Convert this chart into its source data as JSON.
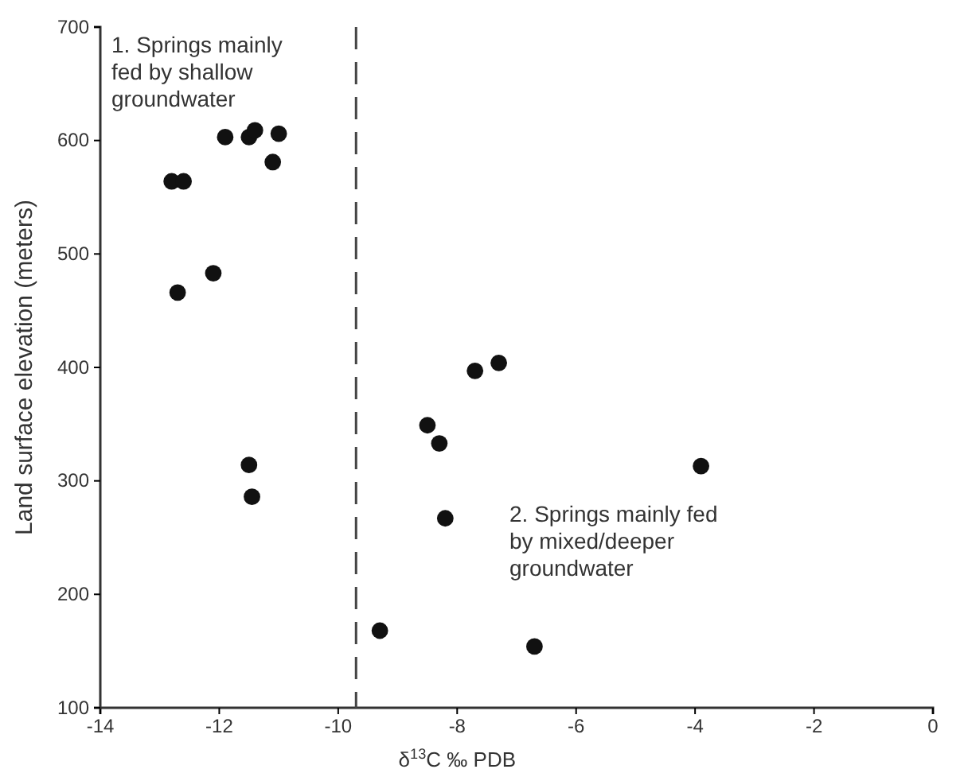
{
  "chart_data": {
    "type": "scatter",
    "xlabel": "δ$^{13}$C ‰ PDB",
    "ylabel": "Land surface elevation (meters)",
    "x": [
      -11.9,
      -11.5,
      -11.4,
      -11.0,
      -11.1,
      -12.8,
      -12.6,
      -12.7,
      -12.1,
      -11.5,
      -11.45,
      -9.3,
      -8.5,
      -8.3,
      -8.2,
      -7.7,
      -7.3,
      -3.9,
      -6.7
    ],
    "series": [
      {
        "color": "#111111",
        "values": [
          603,
          603,
          609,
          606,
          581,
          564,
          564,
          466,
          483,
          314,
          286,
          168,
          349,
          333,
          267,
          397,
          404,
          313,
          154
        ]
      }
    ],
    "xlim": [
      -14,
      0
    ],
    "xticks": [
      -14,
      -12,
      -10,
      -8,
      -6,
      -4,
      -2,
      0
    ],
    "ylim": [
      100,
      700
    ],
    "yticks": [
      100,
      200,
      300,
      400,
      500,
      600,
      700
    ],
    "marker": "circle",
    "grid": false,
    "ref_lines": [
      {
        "axis": "x",
        "value": -9.7,
        "line_style": "dashed",
        "color": "#444444"
      }
    ],
    "annotations": [
      "1. Springs mainly fed by shallow groundwater",
      "2. Springs mainly fed by mixed/deeper groundwater"
    ]
  }
}
